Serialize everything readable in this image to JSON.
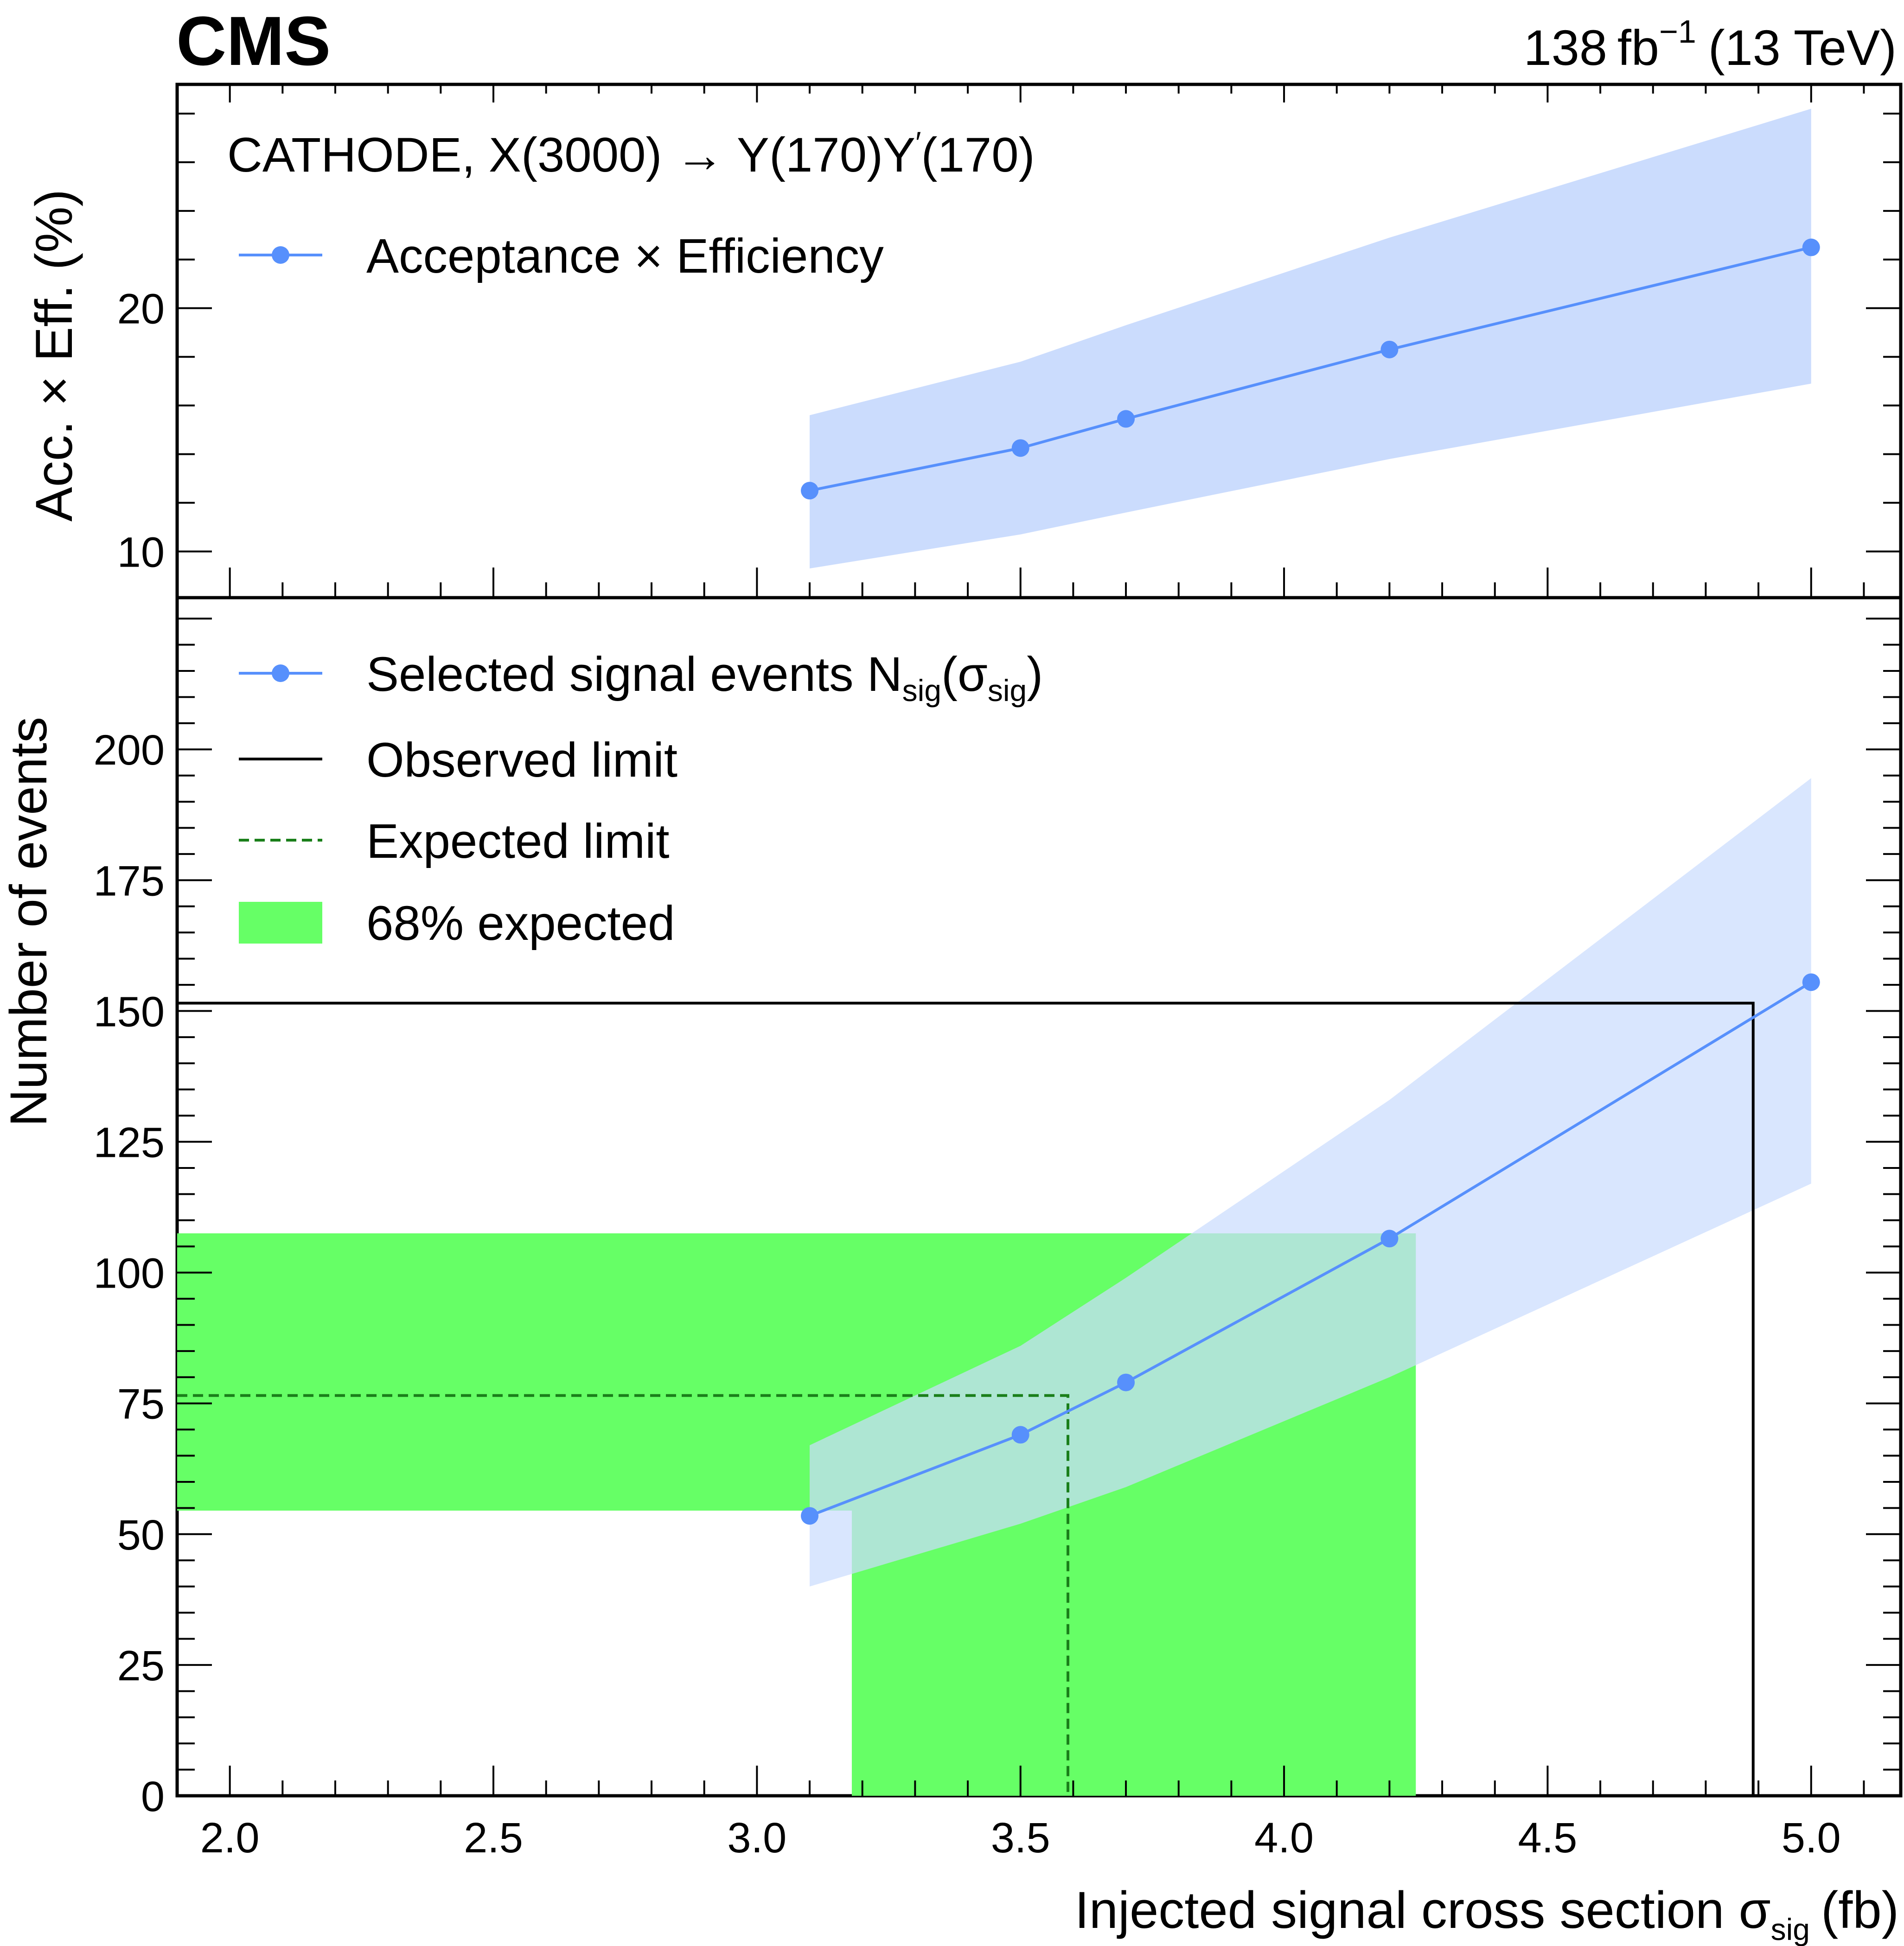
{
  "header": {
    "experiment": "CMS",
    "lumi_value": "138",
    "lumi_unit": "fb",
    "lumi_exp": "−1",
    "energy": "(13 TeV)"
  },
  "top_panel": {
    "process_label": "CATHODE, X(3000) → Y(170)Y",
    "process_prime": "′",
    "process_tail": "(170)",
    "ylabel": "Acc. × Eff.  (%)",
    "legend": [
      {
        "name": "Acceptance × Efficiency",
        "style": "line-marker",
        "color": "#5790fc"
      }
    ],
    "yticks": [
      "10",
      "20"
    ]
  },
  "bottom_panel": {
    "ylabel": "Number of events",
    "legend": [
      {
        "name": "Selected signal events N",
        "sub1": "sig",
        "mid": "(σ",
        "sub2": "sig",
        "tail": ")",
        "style": "line-marker",
        "color": "#5790fc"
      },
      {
        "name": "Observed limit",
        "style": "solid-line",
        "color": "#000000"
      },
      {
        "name": "Expected limit",
        "style": "dashed-line",
        "color": "#1a7f1a"
      },
      {
        "name": "68% expected",
        "style": "fill",
        "color": "#4dff4d"
      }
    ],
    "yticks": [
      "0",
      "25",
      "50",
      "75",
      "100",
      "125",
      "150",
      "175",
      "200"
    ]
  },
  "x_axis": {
    "label": "Injected signal cross section σ",
    "label_sub": "sig",
    "label_unit": "(fb)",
    "ticks": [
      "2.0",
      "2.5",
      "3.0",
      "3.5",
      "4.0",
      "4.5",
      "5.0"
    ]
  },
  "colors": {
    "signal": "#5790fc",
    "signal_band": "#cbdcfd",
    "expected_band": "#66ff66",
    "expected_line": "#1a7f1a",
    "observed_line": "#000000"
  },
  "chart_data": [
    {
      "type": "line",
      "panel": "top",
      "ylabel": "Acc. × Eff.  (%)",
      "xlabel": "Injected signal cross section σsig (fb)",
      "xlim": [
        1.9,
        5.17
      ],
      "ylim": [
        8.1,
        29.2
      ],
      "series": [
        {
          "name": "Acceptance × Efficiency",
          "x": [
            3.1,
            3.5,
            3.7,
            4.2,
            5.0
          ],
          "y": [
            12.5,
            14.25,
            15.45,
            18.3,
            22.5
          ],
          "band_low": [
            9.3,
            10.7,
            11.6,
            13.8,
            16.9
          ],
          "band_high": [
            15.6,
            17.8,
            19.3,
            22.9,
            28.2
          ]
        }
      ]
    },
    {
      "type": "line",
      "panel": "bottom",
      "ylabel": "Number of events",
      "xlabel": "Injected signal cross section σsig (fb)",
      "xlim": [
        1.9,
        5.17
      ],
      "ylim": [
        0,
        229
      ],
      "series": [
        {
          "name": "Selected signal events Nsig(σsig)",
          "x": [
            3.1,
            3.5,
            3.7,
            4.2,
            5.0
          ],
          "y": [
            53.5,
            69,
            79,
            106.5,
            155.5
          ],
          "band_low": [
            40,
            52,
            59,
            80,
            117
          ],
          "band_high": [
            67,
            86,
            99,
            133,
            194.5
          ]
        }
      ],
      "observed_limit": {
        "events": 151.5,
        "cross_section": 4.89
      },
      "expected_limit": {
        "events": 76.5,
        "cross_section": 3.59
      },
      "expected_68": {
        "events_low": 54.5,
        "events_high": 107.5,
        "cross_section_low": 3.18,
        "cross_section_high": 4.25
      }
    }
  ]
}
